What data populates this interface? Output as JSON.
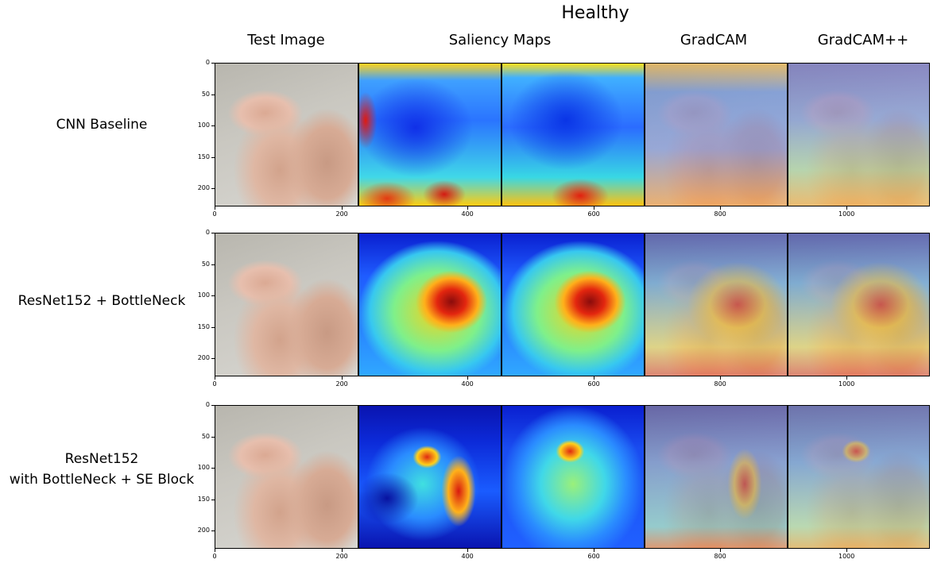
{
  "figure": {
    "title": "Healthy",
    "columns": [
      "Test Image",
      "Saliency Maps",
      "GradCAM",
      "GradCAM++"
    ],
    "rows": [
      {
        "label_lines": [
          "CNN Baseline"
        ],
        "style": "cnn"
      },
      {
        "label_lines": [
          "ResNet152 + BottleNeck"
        ],
        "style": "bottleneck"
      },
      {
        "label_lines": [
          "ResNet152",
          "with BottleNeck + SE Block"
        ],
        "style": "se"
      }
    ],
    "y_ticks": [
      "0",
      "50",
      "100",
      "150",
      "200"
    ],
    "x_ticks": [
      "0",
      "200",
      "400",
      "600",
      "800",
      "1000"
    ]
  }
}
